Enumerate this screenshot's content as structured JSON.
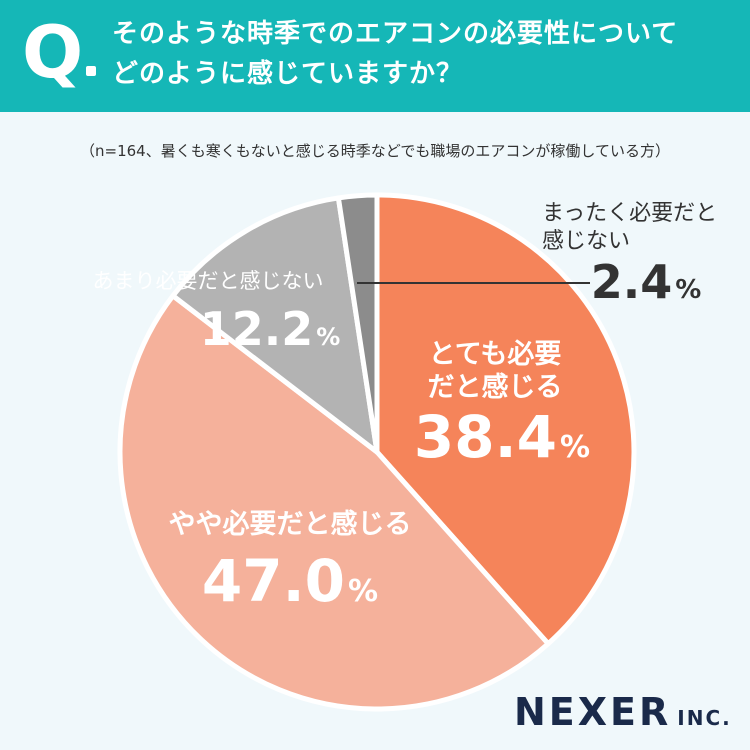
{
  "header": {
    "q_mark": "Q",
    "question_line1": "そのような時季でのエアコンの必要性について",
    "question_line2": "どのように感じていますか？"
  },
  "note": "（n=164、暑くも寒くもないと感じる時季などでも職場のエアコンが稼働している方）",
  "logo": {
    "main": "NEXER",
    "sub": "INC."
  },
  "colors": {
    "header_bg": "#15b7b7",
    "background": "#f0f8fb",
    "slice_strong": "#f5845a",
    "slice_somewhat": "#f5b19b",
    "slice_not_much": "#b3b3b3",
    "slice_not_at_all": "#8c8c8c"
  },
  "chart_data": {
    "type": "pie",
    "title": "",
    "unit": "%",
    "slices": [
      {
        "label_lines": [
          "とても必要",
          "だと感じる"
        ],
        "value": 38.4,
        "value_text": "38.4",
        "color": "#f5845a"
      },
      {
        "label_lines": [
          "やや必要だと感じる"
        ],
        "value": 47.0,
        "value_text": "47.0",
        "color": "#f5b19b"
      },
      {
        "label_lines": [
          "あまり必要だと感じない"
        ],
        "value": 12.2,
        "value_text": "12.2",
        "color": "#b3b3b3"
      },
      {
        "label_lines": [
          "まったく必要だと",
          "感じない"
        ],
        "value": 2.4,
        "value_text": "2.4",
        "color": "#8c8c8c"
      }
    ]
  }
}
